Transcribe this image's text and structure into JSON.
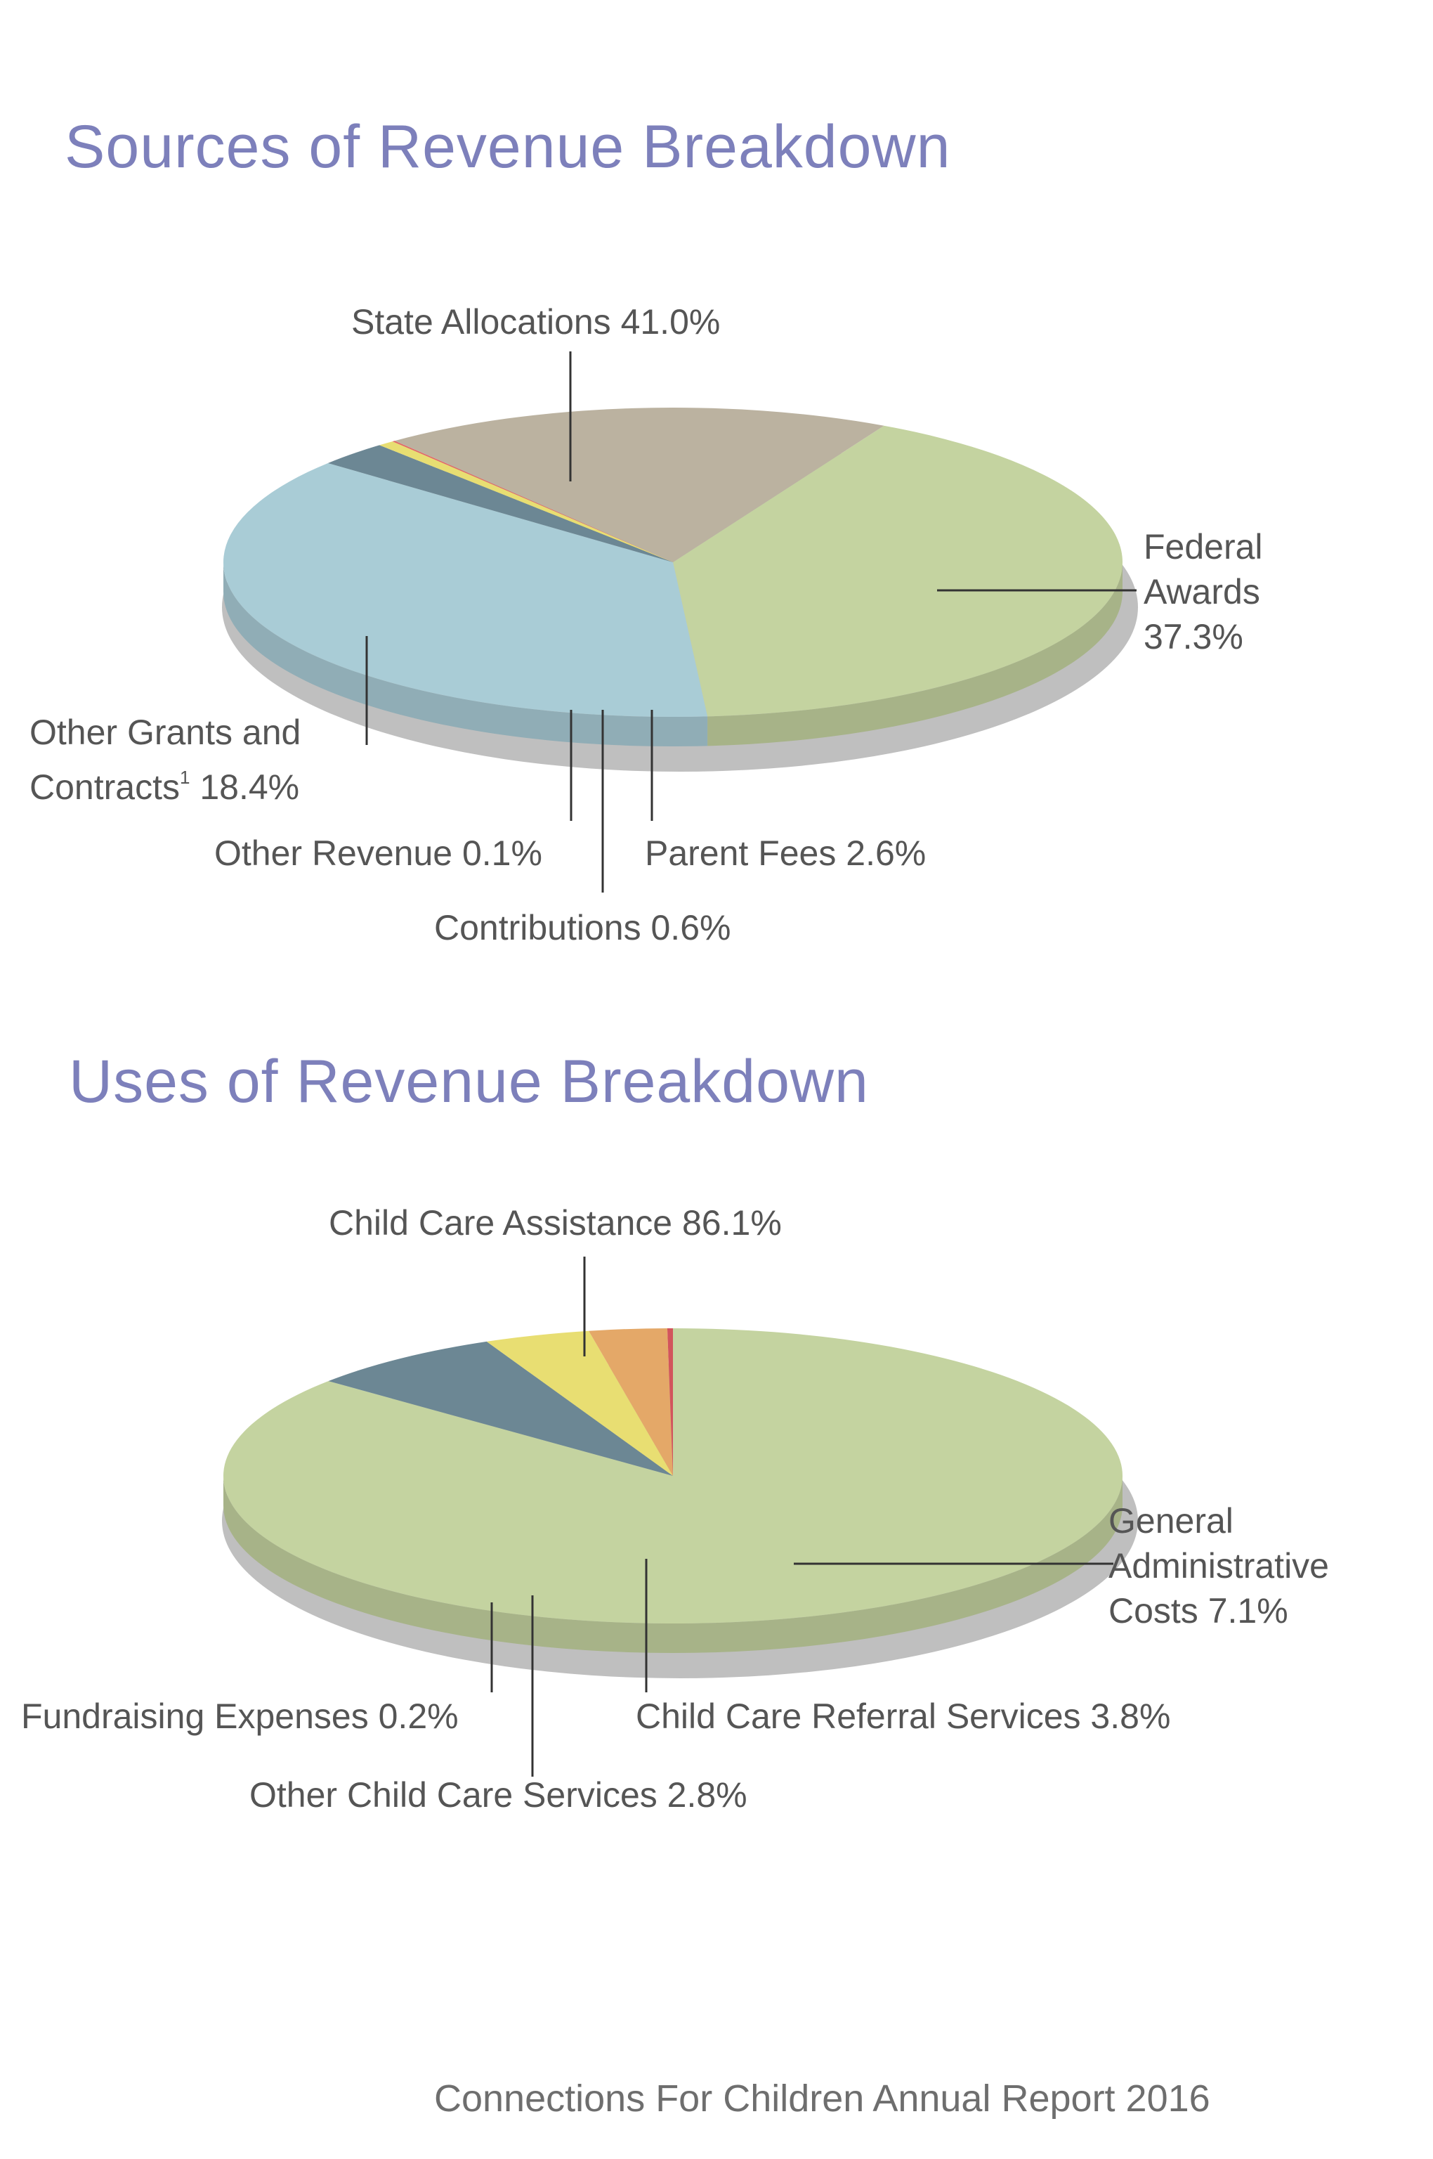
{
  "chart_data": [
    {
      "type": "pie",
      "title": "Sources of Revenue Breakdown",
      "slices": [
        {
          "label": "State Allocations 41.0%",
          "value": 41.0,
          "color": "#c4d3a0"
        },
        {
          "label": "Federal Awards 37.3%",
          "value": 37.3,
          "color": "#a9ccd6"
        },
        {
          "label": "Parent Fees 2.6%",
          "value": 2.6,
          "color": "#6c8794"
        },
        {
          "label": "Contributions 0.6%",
          "value": 0.6,
          "color": "#e8de72"
        },
        {
          "label": "Other Revenue 0.1%",
          "value": 0.1,
          "color": "#e06a68"
        },
        {
          "label": "Other Grants and Contracts¹ 18.4%",
          "value": 18.4,
          "color": "#bbb2a0"
        }
      ]
    },
    {
      "type": "pie",
      "title": "Uses of Revenue Breakdown",
      "slices": [
        {
          "label": "Child Care Assistance 86.1%",
          "value": 86.1,
          "color": "#c4d3a0"
        },
        {
          "label": "General Administrative Costs 7.1%",
          "value": 7.1,
          "color": "#6c8794"
        },
        {
          "label": "Child Care Referral  Services 3.8%",
          "value": 3.8,
          "color": "#e8de72"
        },
        {
          "label": "Other Child Care Services 2.8%",
          "value": 2.8,
          "color": "#e4a868"
        },
        {
          "label": "Fundraising Expenses 0.2%",
          "value": 0.2,
          "color": "#d2545c"
        }
      ]
    }
  ],
  "labels": {
    "sources": {
      "state": "State Allocations 41.0%",
      "federal_1": "Federal",
      "federal_2": "Awards",
      "federal_3": "37.3%",
      "other_grants_1": "Other Grants and",
      "other_grants_2a": "Contracts",
      "other_grants_sup": "1",
      "other_grants_2b": " 18.4%",
      "other_revenue": "Other Revenue 0.1%",
      "parent_fees": "Parent Fees 2.6%",
      "contributions": "Contributions 0.6%"
    },
    "uses": {
      "child_care_assistance": "Child Care Assistance 86.1%",
      "general_1": "General",
      "general_2": "Administrative",
      "general_3": "Costs 7.1%",
      "fundraising": "Fundraising Expenses 0.2%",
      "referral": "Child Care Referral  Services 3.8%",
      "other_services": "Other Child Care Services 2.8%"
    }
  },
  "footer": "Connections For Children Annual Report 2016"
}
